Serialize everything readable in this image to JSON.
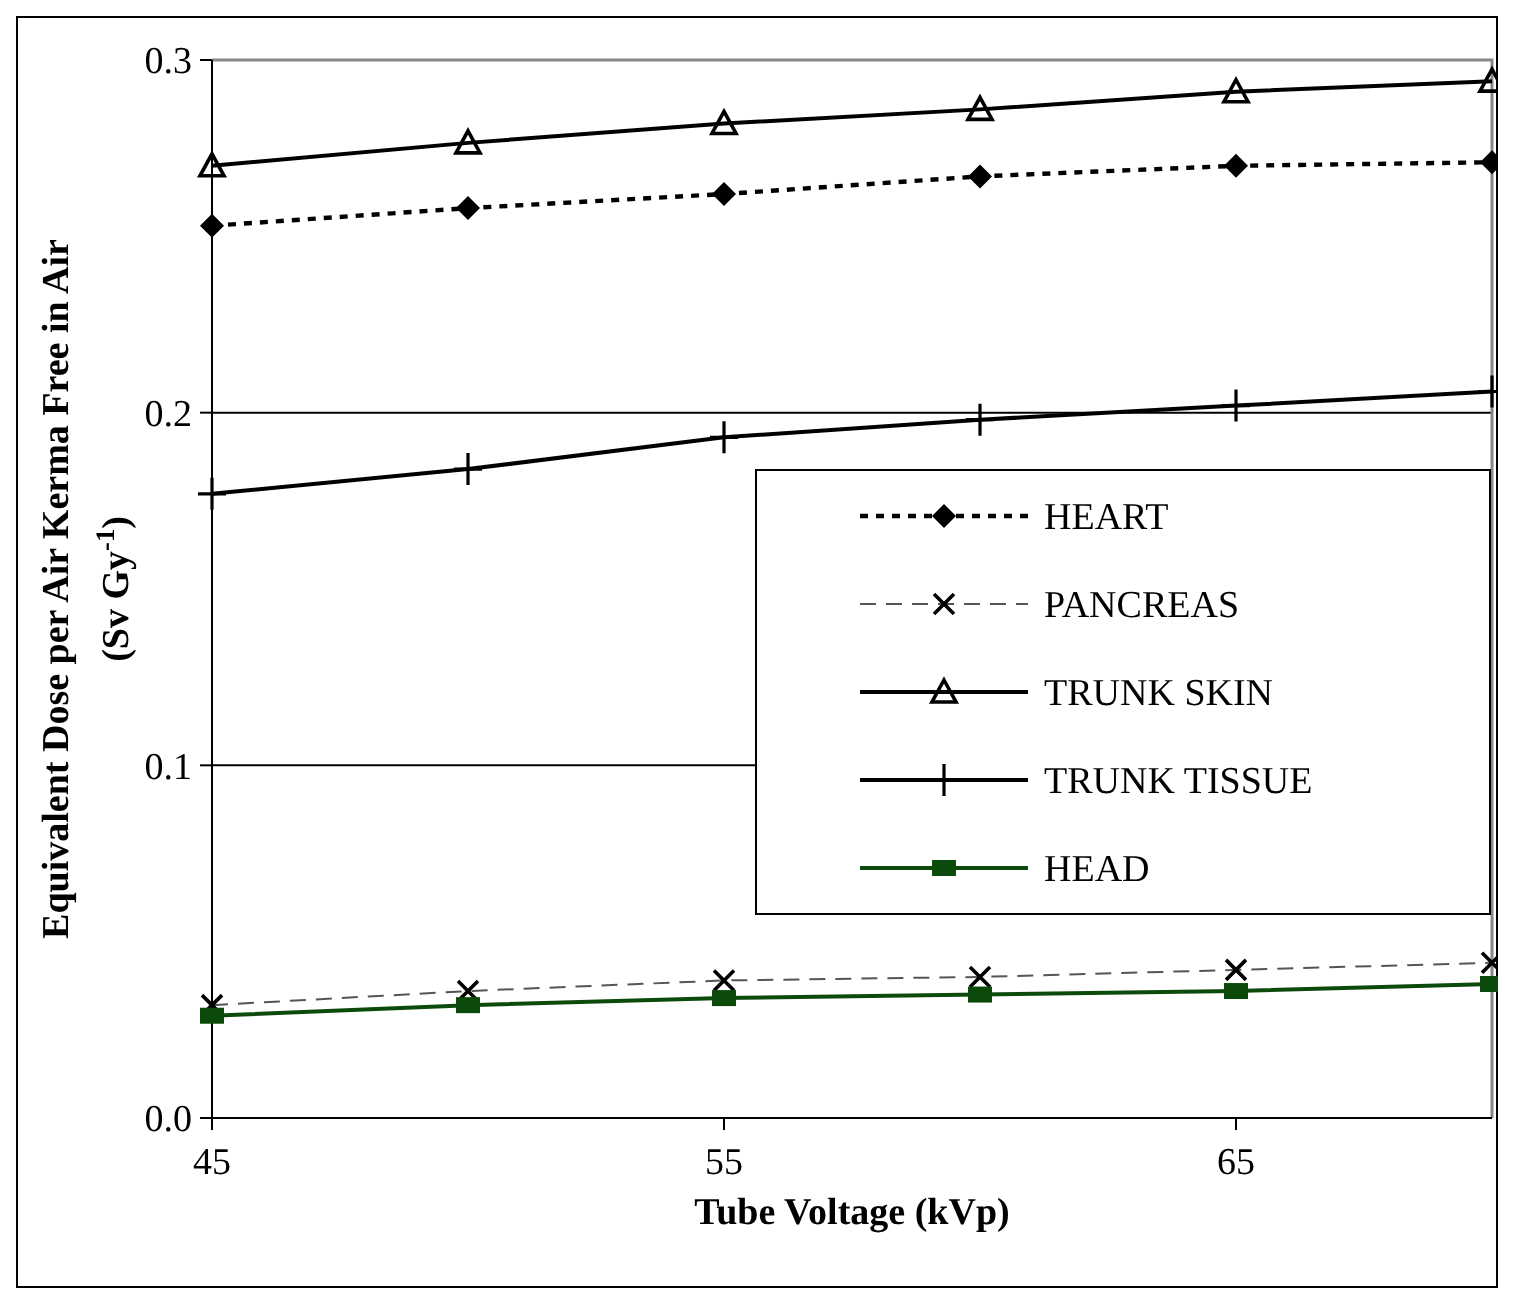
{
  "chart_data": {
    "type": "line",
    "xlabel": "Tube Voltage (kVp)",
    "ylabel": "Equivalent Dose per Air Kerma Free in Air (Sv Gy$^{-1}$)",
    "x": [
      45,
      50,
      55,
      60,
      65,
      70
    ],
    "xlim": [
      45,
      70
    ],
    "xticks": [
      45,
      55,
      65
    ],
    "ylim": [
      0,
      0.3
    ],
    "yticks": [
      {
        "value": 0,
        "label": "0.0"
      },
      {
        "value": 0.1,
        "label": "0.1"
      },
      {
        "value": 0.2,
        "label": "0.2"
      },
      {
        "value": 0.3,
        "label": "0.3"
      }
    ],
    "grid": "y",
    "legend": "right",
    "series": [
      {
        "name": "HEART",
        "color": "#000000",
        "marker": "diamond",
        "line_style": "dotted",
        "values": [
          0.253,
          0.258,
          0.262,
          0.267,
          0.27,
          0.271
        ]
      },
      {
        "name": "PANCREAS",
        "color": "#000000",
        "marker": "cross",
        "line_style": "dashed",
        "values": [
          0.032,
          0.036,
          0.039,
          0.04,
          0.042,
          0.044
        ]
      },
      {
        "name": "TRUNK SKIN",
        "color": "#000000",
        "marker": "triangle",
        "line_style": "solid",
        "values": [
          0.27,
          0.2765,
          0.282,
          0.286,
          0.291,
          0.294
        ]
      },
      {
        "name": "TRUNK TISSUE",
        "color": "#000000",
        "marker": "plus",
        "line_style": "solid",
        "values": [
          0.177,
          0.184,
          0.193,
          0.198,
          0.202,
          0.206
        ]
      },
      {
        "name": "HEAD",
        "color": "#0b4a0b",
        "marker": "square",
        "line_style": "solid",
        "values": [
          0.029,
          0.032,
          0.034,
          0.035,
          0.036,
          0.038
        ]
      }
    ]
  }
}
